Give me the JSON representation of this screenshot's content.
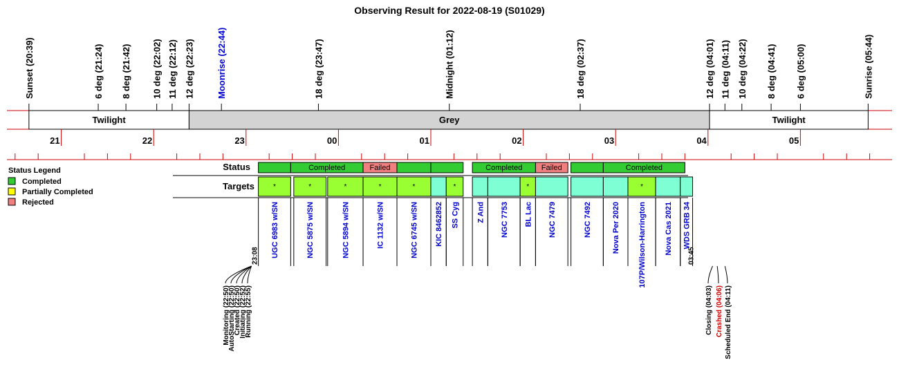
{
  "chart_data": {
    "type": "timeline",
    "title": "Observing Result for 2022-08-19 (S01029)",
    "colors": {
      "frame_red": "#cc0000",
      "grey_band": "#d3d3d3",
      "completed": "#33cc33",
      "partial": "#ffff00",
      "rejected": "#f08080",
      "target_green": "#99ff33",
      "target_cyan": "#7fffd4",
      "link_blue": "#0000cc",
      "crash_red": "#cc0000"
    },
    "events": [
      {
        "label": "Sunset (20:39)",
        "time": "20:39",
        "color": "black"
      },
      {
        "label": "6 deg (21:24)",
        "time": "21:24",
        "color": "black"
      },
      {
        "label": "8 deg (21:42)",
        "time": "21:42",
        "color": "black"
      },
      {
        "label": "10 deg (22:02)",
        "time": "22:02",
        "color": "black"
      },
      {
        "label": "11 deg (22:12)",
        "time": "22:12",
        "color": "black"
      },
      {
        "label": "12 deg (22:23)",
        "time": "22:23",
        "color": "black"
      },
      {
        "label": "Moonrise (22:44)",
        "time": "22:44",
        "color": "blue"
      },
      {
        "label": "18 deg (23:47)",
        "time": "23:47",
        "color": "black"
      },
      {
        "label": "Midnight (01:12)",
        "time": "01:12",
        "color": "black"
      },
      {
        "label": "18 deg (02:37)",
        "time": "02:37",
        "color": "black"
      },
      {
        "label": "12 deg (04:01)",
        "time": "04:01",
        "color": "black"
      },
      {
        "label": "11 deg (04:11)",
        "time": "04:11",
        "color": "black"
      },
      {
        "label": "10 deg (04:22)",
        "time": "04:22",
        "color": "black"
      },
      {
        "label": "8 deg (04:41)",
        "time": "04:41",
        "color": "black"
      },
      {
        "label": "6 deg (05:00)",
        "time": "05:00",
        "color": "black"
      },
      {
        "label": "Sunrise (05:44)",
        "time": "05:44",
        "color": "black"
      }
    ],
    "bands": [
      {
        "label": "Twilight",
        "start": "20:39",
        "end": "22:23",
        "fill": "#ffffff"
      },
      {
        "label": "Grey",
        "start": "22:23",
        "end": "04:01",
        "fill": "#d3d3d3"
      },
      {
        "label": "Twilight",
        "start": "04:01",
        "end": "05:44",
        "fill": "#ffffff"
      }
    ],
    "hour_ticks": [
      "21",
      "22",
      "23",
      "00",
      "01",
      "02",
      "03",
      "04",
      "05"
    ],
    "row_labels": {
      "status": "Status",
      "targets": "Targets"
    },
    "legend": {
      "title": "Status Legend",
      "items": [
        {
          "label": "Completed",
          "color": "#33cc33"
        },
        {
          "label": "Partially Completed",
          "color": "#ffff00"
        },
        {
          "label": "Rejected",
          "color": "#f08080"
        }
      ]
    },
    "status_blocks": [
      {
        "start": "23:08",
        "end": "23:29",
        "status": "Completed",
        "label": ""
      },
      {
        "start": "23:29",
        "end": "00:16",
        "status": "Completed",
        "label": "Completed"
      },
      {
        "start": "00:16",
        "end": "00:38",
        "status": "Rejected",
        "label": "Failed"
      },
      {
        "start": "00:38",
        "end": "01:00",
        "status": "Completed",
        "label": ""
      },
      {
        "start": "01:00",
        "end": "01:21",
        "status": "Completed",
        "label": ""
      },
      {
        "start": "01:27",
        "end": "02:08",
        "status": "Completed",
        "label": "Completed"
      },
      {
        "start": "02:08",
        "end": "02:29",
        "status": "Rejected",
        "label": "Failed"
      },
      {
        "start": "02:31",
        "end": "02:52",
        "status": "Completed",
        "label": ""
      },
      {
        "start": "02:52",
        "end": "03:45",
        "status": "Completed",
        "label": "Completed"
      }
    ],
    "targets": [
      {
        "name": "UGC 6983 w/SN",
        "start": "23:08",
        "end": "23:29",
        "fill": "green",
        "mark": "*"
      },
      {
        "name": "NGC 5875 w/SN",
        "start": "23:31",
        "end": "23:52",
        "fill": "green",
        "mark": "*"
      },
      {
        "name": "NGC 5894 w/SN",
        "start": "23:53",
        "end": "00:16",
        "fill": "green",
        "mark": "*"
      },
      {
        "name": "IC 1132 w/SN",
        "start": "00:16",
        "end": "00:38",
        "fill": "green",
        "mark": "*"
      },
      {
        "name": "NGC 6745 w/SN",
        "start": "00:38",
        "end": "01:00",
        "fill": "green",
        "mark": "*"
      },
      {
        "name": "KIC 8462852",
        "start": "01:00",
        "end": "01:10",
        "fill": "cyan",
        "mark": ""
      },
      {
        "name": "SS Cyg",
        "start": "01:10",
        "end": "01:21",
        "fill": "green",
        "mark": "*"
      },
      {
        "name": "Z And",
        "start": "01:27",
        "end": "01:37",
        "fill": "cyan",
        "mark": ""
      },
      {
        "name": "NGC 7753",
        "start": "01:37",
        "end": "01:58",
        "fill": "cyan",
        "mark": ""
      },
      {
        "name": "BL Lac",
        "start": "01:58",
        "end": "02:08",
        "fill": "green",
        "mark": "*"
      },
      {
        "name": "NGC 7479",
        "start": "02:08",
        "end": "02:29",
        "fill": "cyan",
        "mark": ""
      },
      {
        "name": "NGC 7492",
        "start": "02:31",
        "end": "02:52",
        "fill": "cyan",
        "mark": ""
      },
      {
        "name": "Nova Per 2020",
        "start": "02:52",
        "end": "03:08",
        "fill": "cyan",
        "mark": ""
      },
      {
        "name": "107P/Wilson-Harrington",
        "start": "03:08",
        "end": "03:26",
        "fill": "green",
        "mark": "*"
      },
      {
        "name": "Nova Cas 2021",
        "start": "03:26",
        "end": "03:42",
        "fill": "cyan",
        "mark": ""
      },
      {
        "name": "WDS GRB 34",
        "start": "03:42",
        "end": "03:50",
        "fill": "cyan",
        "mark": ""
      }
    ],
    "run_window": {
      "start": "23:08",
      "end": "03:45"
    },
    "pre_events": [
      {
        "label": "Monitoring (22:50)",
        "color": "black"
      },
      {
        "label": "AutoStarting (22:50)",
        "color": "black"
      },
      {
        "label": "Created (22:50)",
        "color": "black"
      },
      {
        "label": "Initiating (22:52)",
        "color": "black"
      },
      {
        "label": "Running (22:55)",
        "color": "black"
      }
    ],
    "post_events": [
      {
        "label": "Closing (04:03)",
        "time": "04:03",
        "color": "black"
      },
      {
        "label": "Crashed (04:06)",
        "time": "04:06",
        "color": "red"
      },
      {
        "label": "Scheduled End (04:11)",
        "time": "04:11",
        "color": "black"
      }
    ]
  }
}
